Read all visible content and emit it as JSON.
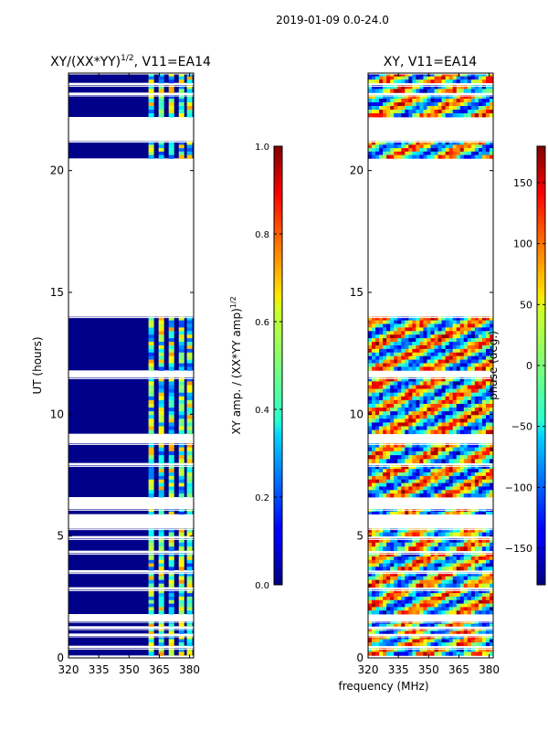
{
  "figure": {
    "suptitle": "2019-01-09 0.0-24.0",
    "xlabel": "frequency (MHz)"
  },
  "chart_data": [
    {
      "type": "heatmap",
      "title": "XY/(XX*YY)",
      "title_exponent": "1/2",
      "title_suffix": ", V11=EA14",
      "ylabel": "UT (hours)",
      "xlim": [
        320,
        382
      ],
      "ylim": [
        0,
        24
      ],
      "xticks": [
        320,
        335,
        350,
        365,
        380
      ],
      "yticks": [
        0,
        5,
        10,
        15,
        20
      ],
      "colorbar": {
        "label": "XY amp. / (XX*YY amp)",
        "label_exponent": "1/2",
        "range": [
          0.0,
          1.0
        ],
        "ticks": [
          "0.0",
          "0.2",
          "0.4",
          "0.6",
          "0.8",
          "1.0"
        ]
      },
      "data_blocks_hours": [
        [
          0.1,
          0.4
        ],
        [
          0.5,
          0.9
        ],
        [
          1.0,
          1.2
        ],
        [
          1.3,
          1.5
        ],
        [
          1.8,
          2.8
        ],
        [
          2.9,
          3.5
        ],
        [
          3.6,
          4.3
        ],
        [
          4.4,
          4.9
        ],
        [
          5.0,
          5.3
        ],
        [
          5.9,
          6.1
        ],
        [
          6.6,
          7.9
        ],
        [
          8.0,
          8.8
        ],
        [
          9.2,
          11.5
        ],
        [
          11.8,
          14.0
        ],
        [
          20.5,
          21.2
        ],
        [
          22.2,
          23.1
        ],
        [
          23.2,
          23.5
        ],
        [
          23.6,
          24.0
        ]
      ],
      "high_amplitude_freq_channels_mhz": [
        361,
        366,
        371,
        376,
        380
      ]
    },
    {
      "type": "heatmap",
      "title": "XY, V11=EA14",
      "xlim": [
        320,
        382
      ],
      "ylim": [
        0,
        24
      ],
      "xticks": [
        320,
        335,
        350,
        365,
        380
      ],
      "yticks": [
        0,
        5,
        10,
        15,
        20
      ],
      "colorbar": {
        "label": "phase (deg.)",
        "range": [
          -180,
          180
        ],
        "ticks": [
          "−150",
          "−100",
          "−50",
          "0",
          "50",
          "100",
          "150"
        ]
      },
      "data_blocks_hours": [
        [
          0.1,
          0.4
        ],
        [
          0.5,
          0.9
        ],
        [
          1.0,
          1.2
        ],
        [
          1.3,
          1.5
        ],
        [
          1.8,
          2.8
        ],
        [
          2.9,
          3.5
        ],
        [
          3.6,
          4.3
        ],
        [
          4.4,
          4.9
        ],
        [
          5.0,
          5.3
        ],
        [
          5.9,
          6.1
        ],
        [
          6.6,
          7.9
        ],
        [
          8.0,
          8.8
        ],
        [
          9.2,
          11.5
        ],
        [
          11.8,
          14.0
        ],
        [
          20.5,
          21.2
        ],
        [
          22.2,
          23.1
        ],
        [
          23.2,
          23.5
        ],
        [
          23.6,
          24.0
        ]
      ]
    }
  ]
}
